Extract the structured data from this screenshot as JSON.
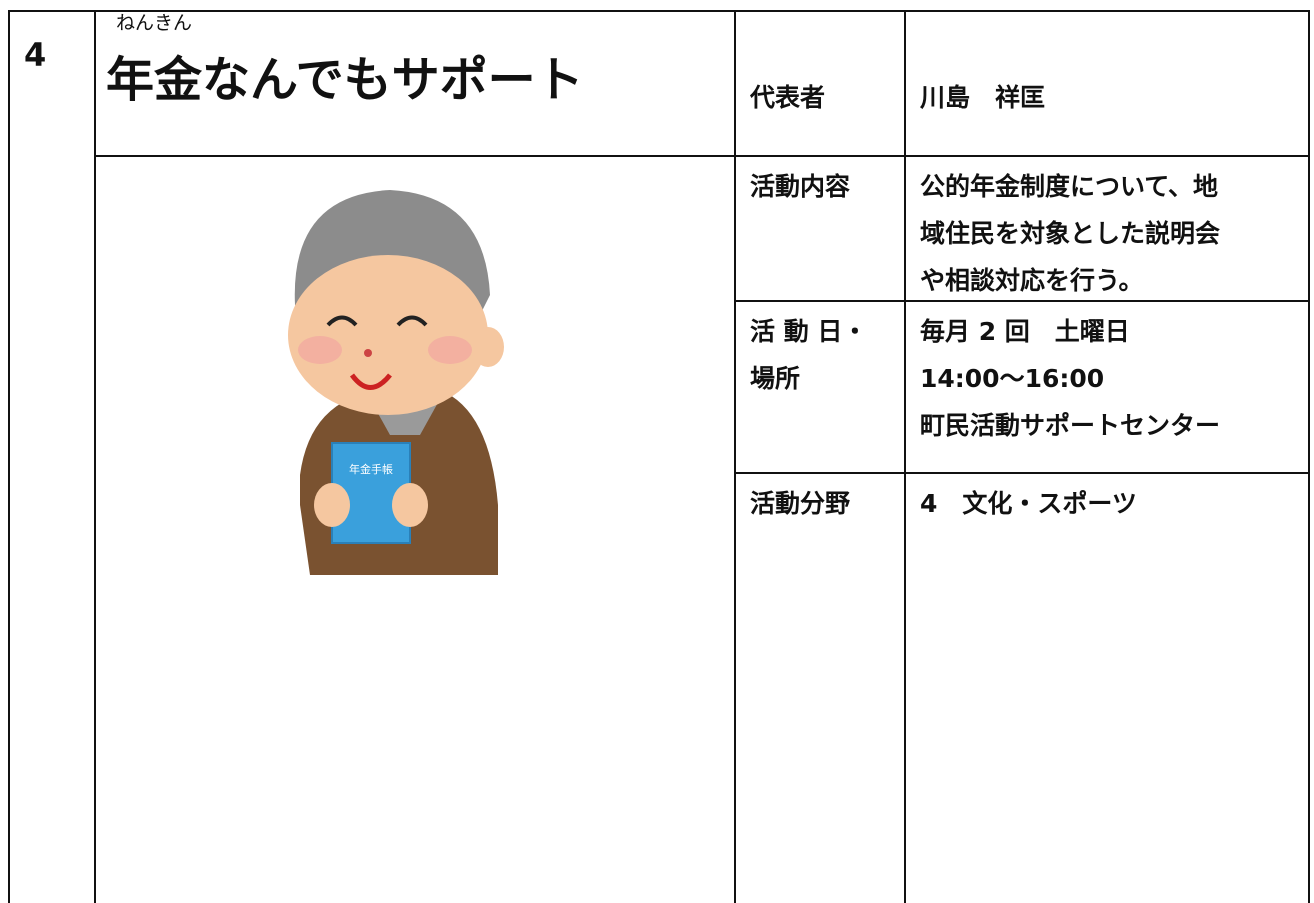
{
  "number": "4",
  "title": {
    "ruby": "ねんきん",
    "text": "年金なんでもサポート"
  },
  "illustration": {
    "book_label": "年金手帳"
  },
  "rows": [
    {
      "label": [
        "代表者"
      ],
      "content": [
        "川島　祥匡"
      ]
    },
    {
      "label": [
        "活動内容"
      ],
      "content": [
        "公的年金制度について、地",
        "域住民を対象とした説明会",
        "や相談対応を行う。"
      ]
    },
    {
      "label": [
        "活 動 日・",
        "場所"
      ],
      "content": [
        "毎月 2 回　土曜日",
        "14:00～16:00",
        "町民活動サポートセンター"
      ]
    },
    {
      "label": [
        "活動分野"
      ],
      "content": [
        "4　文化・スポーツ"
      ]
    }
  ]
}
